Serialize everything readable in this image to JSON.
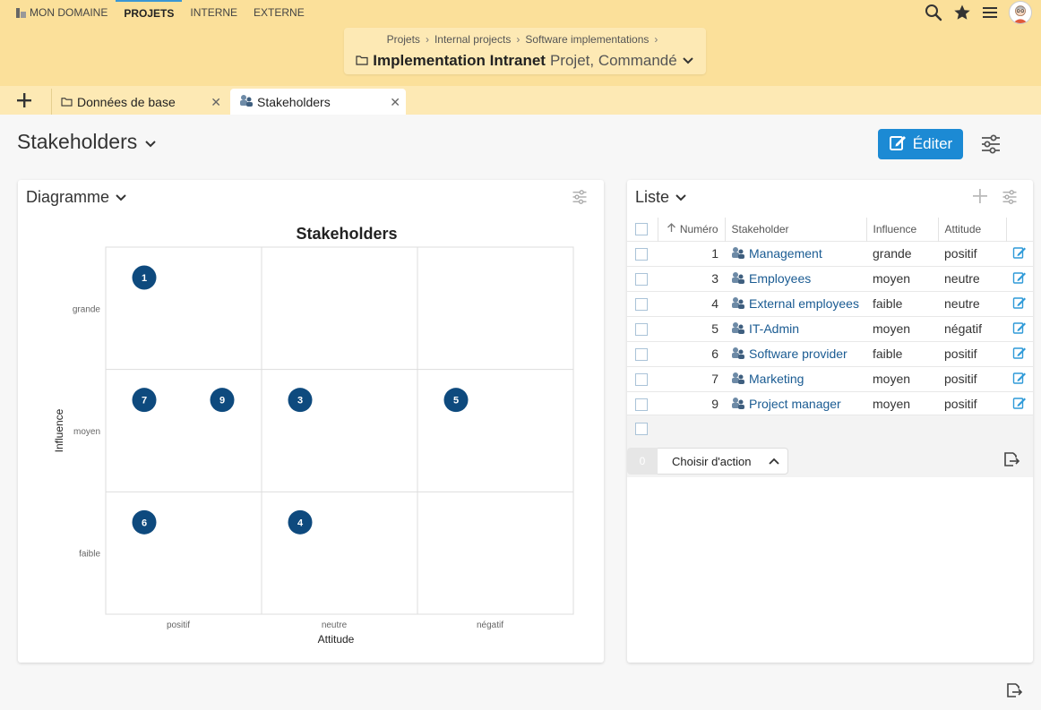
{
  "nav": {
    "items": [
      "MON DOMAINE",
      "PROJETS",
      "INTERNE",
      "EXTERNE"
    ],
    "active": "PROJETS"
  },
  "breadcrumb": {
    "items": [
      "Projets",
      "Internal projects",
      "Software implementations"
    ],
    "title": "Implementation Intranet",
    "subtitle": "Projet, Commandé"
  },
  "tabs": {
    "items": [
      {
        "label": "Données de base",
        "icon": "folder-icon"
      },
      {
        "label": "Stakeholders",
        "icon": "stakeholder-icon"
      }
    ],
    "active": "Stakeholders"
  },
  "page": {
    "title": "Stakeholders",
    "edit_label": "Éditer"
  },
  "diagram_panel": {
    "title": "Diagramme"
  },
  "list_panel": {
    "title": "Liste",
    "columns": {
      "numero": "Numéro",
      "stakeholder": "Stakeholder",
      "influence": "Influence",
      "attitude": "Attitude"
    },
    "rows": [
      {
        "num": "1",
        "name": "Management",
        "influence": "grande",
        "attitude": "positif"
      },
      {
        "num": "3",
        "name": "Employees",
        "influence": "moyen",
        "attitude": "neutre"
      },
      {
        "num": "4",
        "name": "External employees",
        "influence": "faible",
        "attitude": "neutre"
      },
      {
        "num": "5",
        "name": "IT-Admin",
        "influence": "moyen",
        "attitude": "négatif"
      },
      {
        "num": "6",
        "name": "Software provider",
        "influence": "faible",
        "attitude": "positif"
      },
      {
        "num": "7",
        "name": "Marketing",
        "influence": "moyen",
        "attitude": "positif"
      },
      {
        "num": "9",
        "name": "Project manager",
        "influence": "moyen",
        "attitude": "positif"
      }
    ],
    "selected_count": "0",
    "action_label": "Choisir d'action"
  },
  "chart_data": {
    "type": "scatter",
    "title": "Stakeholders",
    "xlabel": "Attitude",
    "ylabel": "Influence",
    "x_categories": [
      "positif",
      "neutre",
      "négatif"
    ],
    "y_categories": [
      "faible",
      "moyen",
      "grande"
    ],
    "grid": true,
    "points": [
      {
        "label": "1",
        "x": "positif",
        "y": "grande",
        "slot": 0
      },
      {
        "label": "7",
        "x": "positif",
        "y": "moyen",
        "slot": 0
      },
      {
        "label": "9",
        "x": "positif",
        "y": "moyen",
        "slot": 1
      },
      {
        "label": "3",
        "x": "neutre",
        "y": "moyen",
        "slot": 0
      },
      {
        "label": "5",
        "x": "négatif",
        "y": "moyen",
        "slot": 0
      },
      {
        "label": "6",
        "x": "positif",
        "y": "faible",
        "slot": 0
      },
      {
        "label": "4",
        "x": "neutre",
        "y": "faible",
        "slot": 0
      }
    ],
    "point_color": "#0e4a7e"
  }
}
